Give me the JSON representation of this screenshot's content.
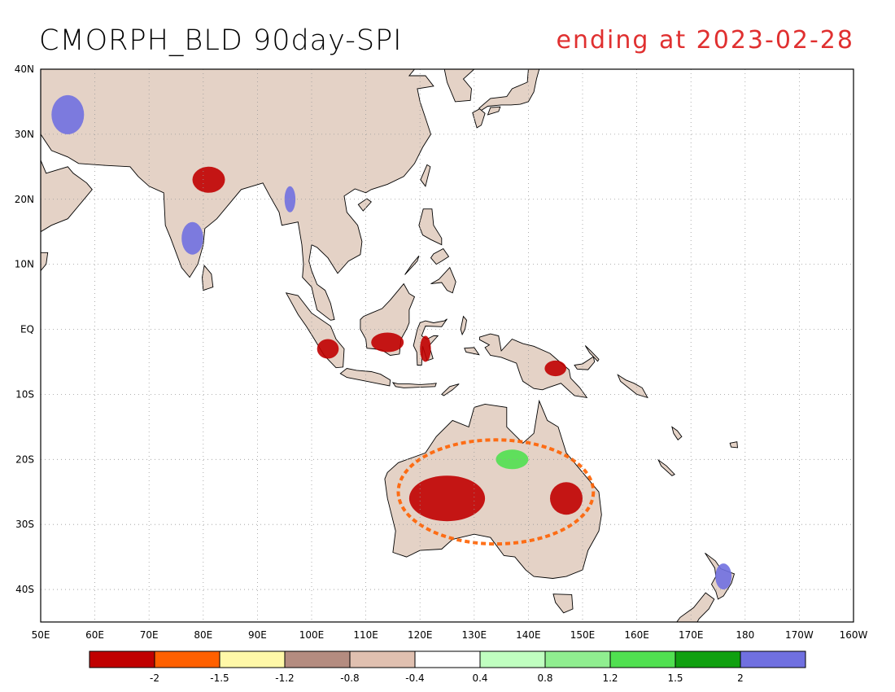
{
  "title": "CMORPH_BLD 90day-SPI",
  "subtitle": "ending at 2023-02-28",
  "lat_labels": [
    {
      "value": 40,
      "label": "40N"
    },
    {
      "value": 30,
      "label": "30N"
    },
    {
      "value": 20,
      "label": "20N"
    },
    {
      "value": 10,
      "label": "10N"
    },
    {
      "value": 0,
      "label": "EQ"
    },
    {
      "value": -10,
      "label": "10S"
    },
    {
      "value": -20,
      "label": "20S"
    },
    {
      "value": -30,
      "label": "30S"
    },
    {
      "value": -40,
      "label": "40S"
    }
  ],
  "lon_labels": [
    {
      "value": 50,
      "label": "50E"
    },
    {
      "value": 60,
      "label": "60E"
    },
    {
      "value": 70,
      "label": "70E"
    },
    {
      "value": 80,
      "label": "80E"
    },
    {
      "value": 90,
      "label": "90E"
    },
    {
      "value": 100,
      "label": "100E"
    },
    {
      "value": 110,
      "label": "110E"
    },
    {
      "value": 120,
      "label": "120E"
    },
    {
      "value": 130,
      "label": "130E"
    },
    {
      "value": 140,
      "label": "140E"
    },
    {
      "value": 150,
      "label": "150E"
    },
    {
      "value": 160,
      "label": "160E"
    },
    {
      "value": 170,
      "label": "170E"
    },
    {
      "value": 180,
      "label": "180"
    },
    {
      "value": 190,
      "label": "170W"
    },
    {
      "value": 200,
      "label": "160W"
    }
  ],
  "extent": {
    "lon": [
      50,
      200
    ],
    "lat": [
      -45,
      40
    ]
  },
  "colorbar": {
    "colors": [
      "#c00000",
      "#ff6000",
      "#fff8a8",
      "#b48c80",
      "#e0c0b0",
      "#ffffff",
      "#c0ffc0",
      "#90ee90",
      "#50e050",
      "#10a010",
      "#7070e0"
    ],
    "labels": [
      "-2",
      "-1.5",
      "-1.2",
      "-0.8",
      "-0.4",
      "0.4",
      "0.8",
      "1.2",
      "1.5",
      "2"
    ]
  },
  "anomaly_regions": [
    {
      "name": "central-australia",
      "lon": 125,
      "lat": -26,
      "rx": 7,
      "ry": 3.5,
      "color": "#c00000"
    },
    {
      "name": "east-australia",
      "lon": 147,
      "lat": -26,
      "rx": 3,
      "ry": 2.5,
      "color": "#c00000"
    },
    {
      "name": "australia-ring",
      "lon": 134,
      "lat": -25,
      "rx": 18,
      "ry": 8,
      "color": "#ff6000"
    },
    {
      "name": "central-india",
      "lon": 81,
      "lat": 23,
      "rx": 3,
      "ry": 2,
      "color": "#c00000"
    },
    {
      "name": "borneo",
      "lon": 114,
      "lat": -2,
      "rx": 3,
      "ry": 1.5,
      "color": "#c00000"
    },
    {
      "name": "sumatra",
      "lon": 103,
      "lat": -3,
      "rx": 2,
      "ry": 1.5,
      "color": "#c00000"
    },
    {
      "name": "sulawesi",
      "lon": 121,
      "lat": -3,
      "rx": 1,
      "ry": 2,
      "color": "#c00000"
    },
    {
      "name": "png",
      "lon": 145,
      "lat": -6,
      "rx": 2,
      "ry": 1.2,
      "color": "#c00000"
    },
    {
      "name": "india-wet",
      "lon": 78,
      "lat": 14,
      "rx": 2,
      "ry": 2.5,
      "color": "#7070e0"
    },
    {
      "name": "nz-wet",
      "lon": 176,
      "lat": -38,
      "rx": 1.5,
      "ry": 2,
      "color": "#7070e0"
    },
    {
      "name": "arabia-wet",
      "lon": 55,
      "lat": 33,
      "rx": 3,
      "ry": 3,
      "color": "#7070e0"
    },
    {
      "name": "burma-wet",
      "lon": 96,
      "lat": 20,
      "rx": 1,
      "ry": 2,
      "color": "#7070e0"
    },
    {
      "name": "nt-wet",
      "lon": 137,
      "lat": -20,
      "rx": 3,
      "ry": 1.5,
      "color": "#50e050"
    }
  ]
}
